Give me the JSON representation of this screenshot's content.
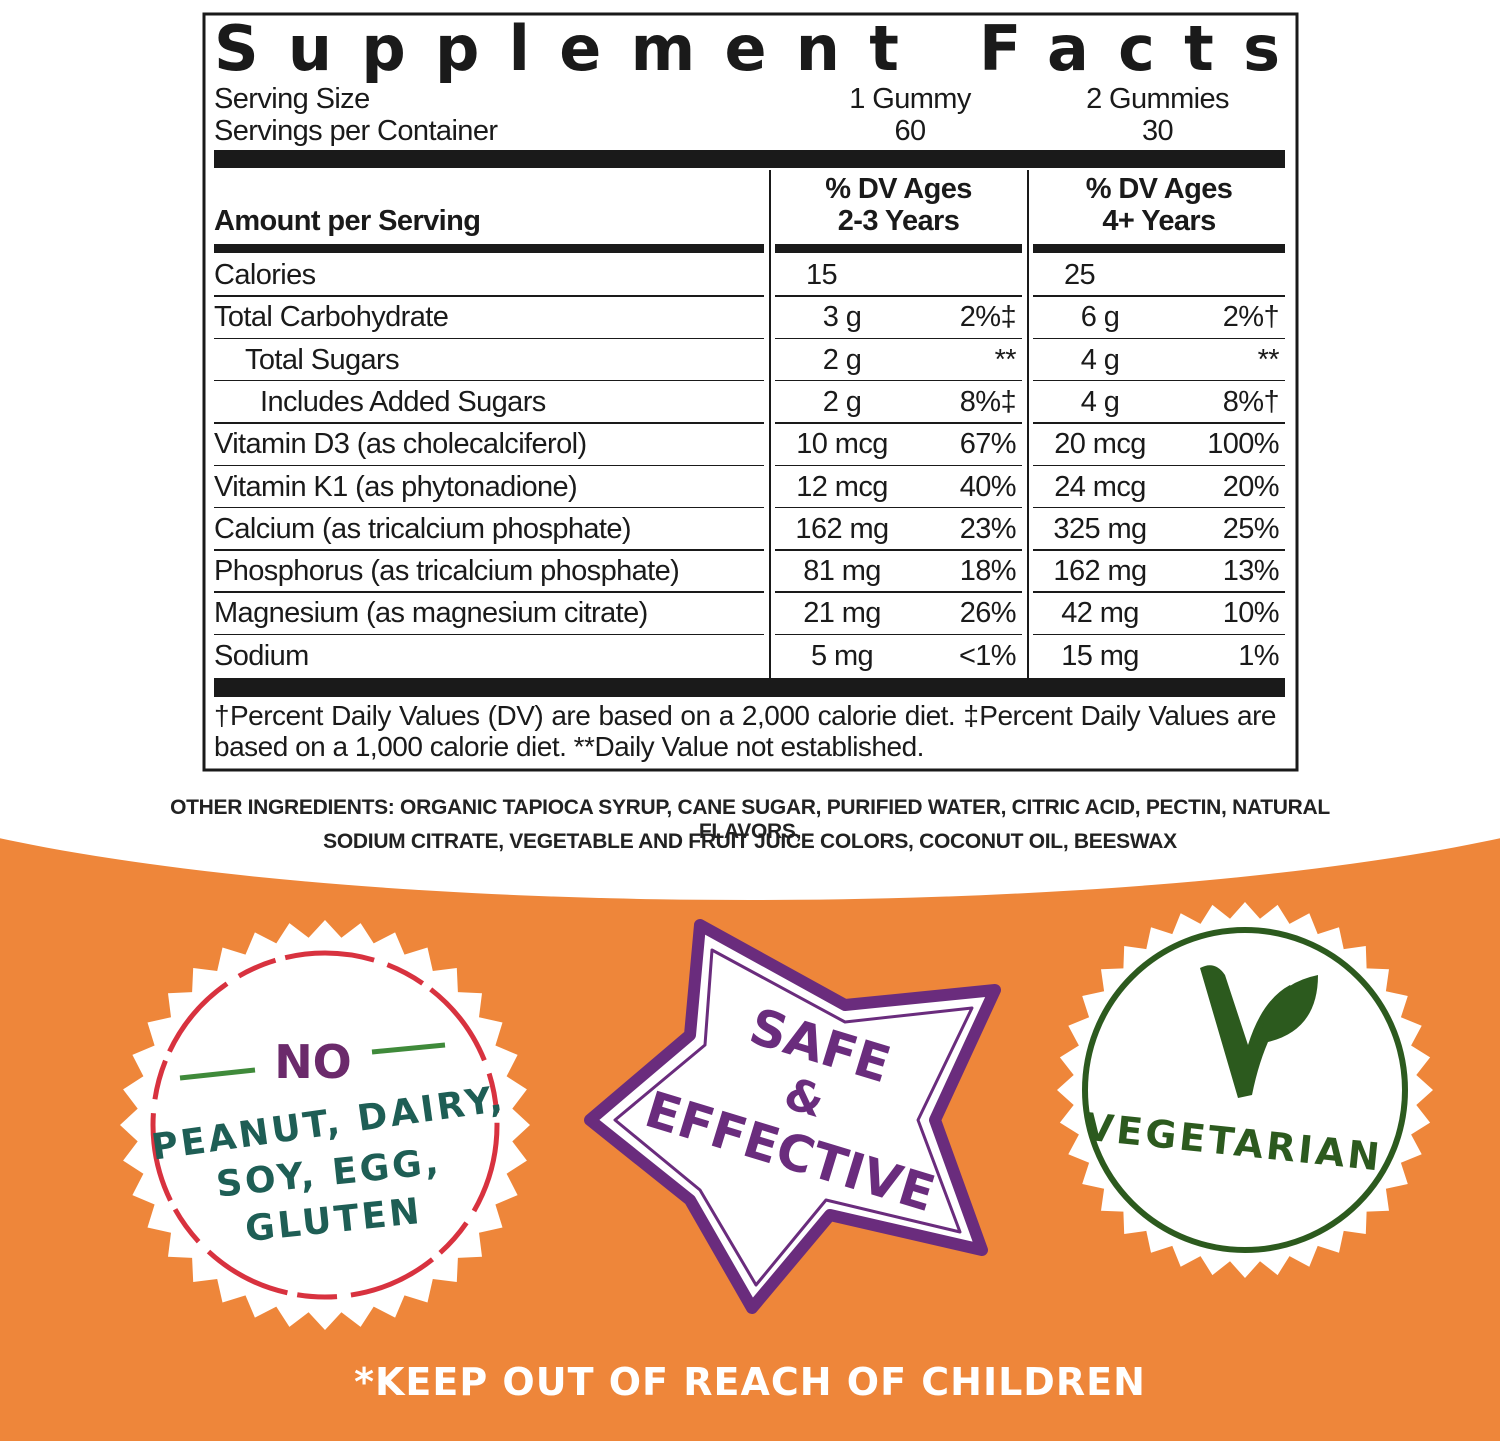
{
  "facts": {
    "title": "Supplement Facts",
    "serving": [
      {
        "label": "Serving Size",
        "values": [
          "1 Gummy",
          "2 Gummies"
        ]
      },
      {
        "label": "Servings per Container",
        "values": [
          "60",
          "30"
        ]
      }
    ],
    "columns": {
      "label": "Amount per Serving",
      "groups": [
        [
          "% DV Ages",
          "2-3 Years"
        ],
        [
          "% DV Ages",
          "4+ Years"
        ]
      ]
    },
    "rows": [
      {
        "name": "Calories",
        "cells": [
          [
            "15"
          ],
          [
            "25"
          ]
        ]
      },
      {
        "name": "Total Carbohydrate",
        "cells": [
          [
            "3 g",
            "2%‡"
          ],
          [
            "6 g",
            "2%†"
          ]
        ]
      },
      {
        "name": "Total Sugars",
        "level": 1,
        "cells": [
          [
            "2 g",
            "**"
          ],
          [
            "4 g",
            "**"
          ]
        ]
      },
      {
        "name": "Includes Added Sugars",
        "level": 2,
        "cells": [
          [
            "2 g",
            "8%‡"
          ],
          [
            "4 g",
            "8%†"
          ]
        ]
      },
      {
        "name": "Vitamin D3 (as cholecalciferol)",
        "cells": [
          [
            "10 mcg",
            "67%"
          ],
          [
            "20 mcg",
            "100%"
          ]
        ]
      },
      {
        "name": "Vitamin K1 (as phytonadione)",
        "cells": [
          [
            "12 mcg",
            "40%"
          ],
          [
            "24 mcg",
            "20%"
          ]
        ]
      },
      {
        "name": "Calcium (as tricalcium phosphate)",
        "cells": [
          [
            "162 mg",
            "23%"
          ],
          [
            "325 mg",
            "25%"
          ]
        ]
      },
      {
        "name": "Phosphorus (as tricalcium phosphate)",
        "cells": [
          [
            "81 mg",
            "18%"
          ],
          [
            "162 mg",
            "13%"
          ]
        ]
      },
      {
        "name": "Magnesium (as magnesium citrate)",
        "cells": [
          [
            "21 mg",
            "26%"
          ],
          [
            "42 mg",
            "10%"
          ]
        ]
      },
      {
        "name": "Sodium",
        "cells": [
          [
            "5 mg",
            "<1%"
          ],
          [
            "15 mg",
            "1%"
          ]
        ]
      }
    ],
    "footnote": "†Percent Daily Values (DV) are based on a 2,000 calorie diet. ‡Percent Daily Values are based on a 1,000 calorie diet. **Daily Value not established."
  },
  "ingredients": [
    "OTHER INGREDIENTS: ORGANIC TAPIOCA SYRUP, CANE SUGAR, PURIFIED WATER, CITRIC ACID, PECTIN, NATURAL FLAVORS,",
    "SODIUM CITRATE, VEGETABLE AND FRUIT JUICE COLORS, COCONUT OIL, BEESWAX"
  ],
  "badges": {
    "allergens": [
      "NO",
      "PEANUT, DAIRY,",
      "SOY, EGG,",
      "GLUTEN"
    ],
    "safety": [
      "SAFE",
      "&",
      "EFFECTIVE"
    ],
    "diet": "VEGETARIAN"
  },
  "warning": "*KEEP OUT OF REACH OF CHILDREN"
}
